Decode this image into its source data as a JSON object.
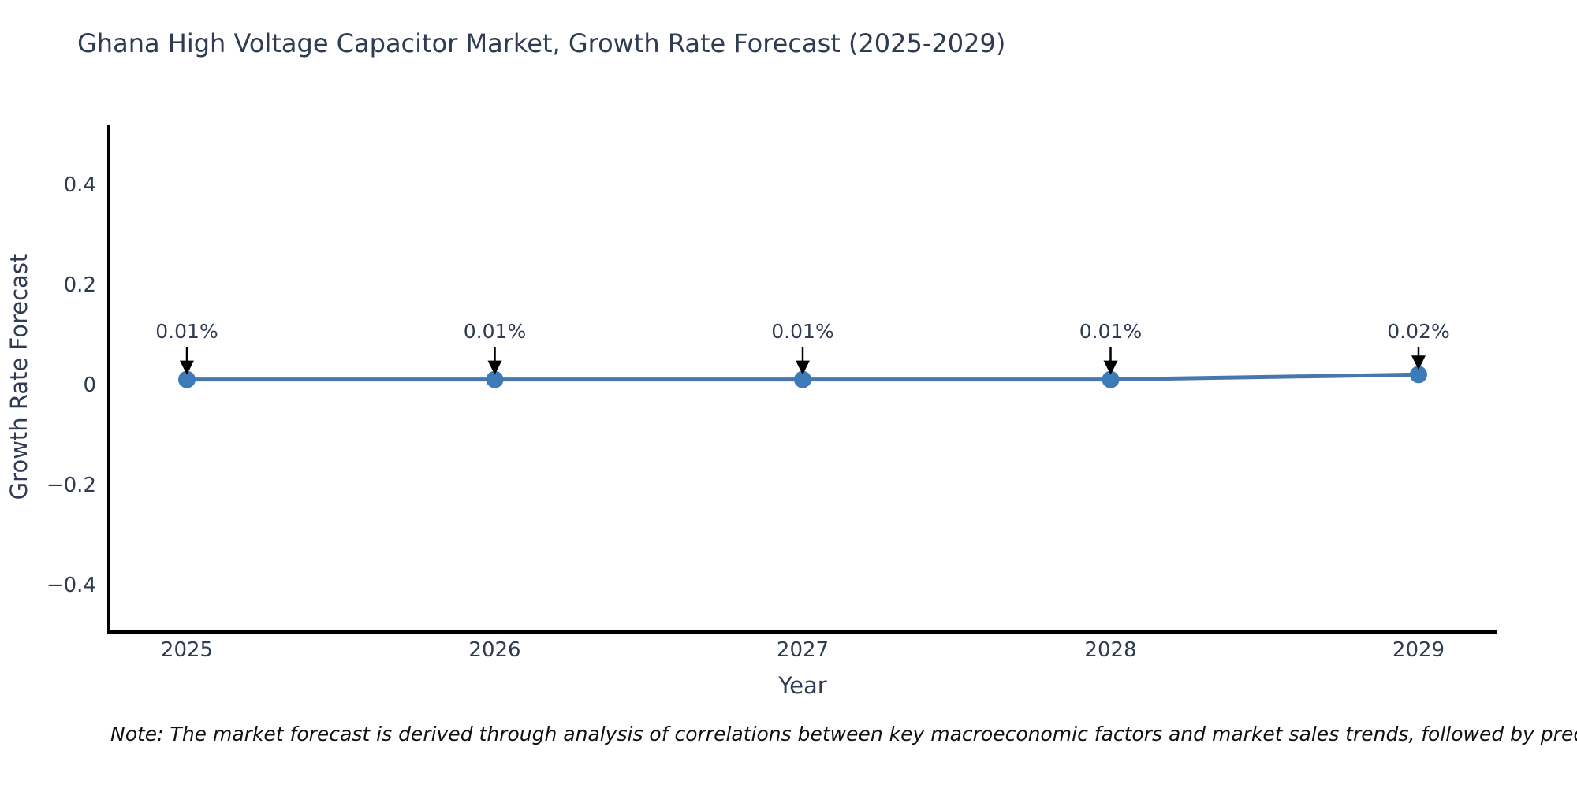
{
  "title": "Ghana High Voltage Capacitor Market, Growth Rate Forecast (2025-2029)",
  "note": "Note: The market forecast is derived through analysis of correlations between key macroeconomic factors and market sales trends, followed by predictive modeling to project future sa",
  "chart_data": {
    "type": "line",
    "x": [
      2025,
      2026,
      2027,
      2028,
      2029
    ],
    "x_tick_labels": [
      "2025",
      "2026",
      "2027",
      "2028",
      "2029"
    ],
    "series": [
      {
        "name": "Growth Rate Forecast",
        "values": [
          0.01,
          0.01,
          0.01,
          0.01,
          0.02
        ]
      }
    ],
    "point_labels": [
      "0.01%",
      "0.01%",
      "0.01%",
      "0.01%",
      "0.02%"
    ],
    "xlabel": "Year",
    "ylabel": "Growth Rate Forecast",
    "y_ticks": [
      0.4,
      0.2,
      0,
      -0.2,
      -0.4
    ],
    "y_tick_labels": [
      "0.4",
      "0.2",
      "0",
      "−0.2",
      "−0.4"
    ],
    "ylim": [
      -0.5,
      0.52
    ],
    "xlim_padding_years": 0.25,
    "grid": false,
    "legend": "none",
    "annotation_style": "label-with-down-arrow",
    "colors": {
      "line": "#4878ab",
      "marker": "#3d7ab8",
      "axis_spine": "#000000",
      "tick_text": "#2e3b52",
      "annotation_text": "#2e3b52",
      "annotation_arrow": "#000000",
      "title_text": "#2e3b52",
      "note_text": "#111111",
      "background": "#ffffff"
    }
  }
}
